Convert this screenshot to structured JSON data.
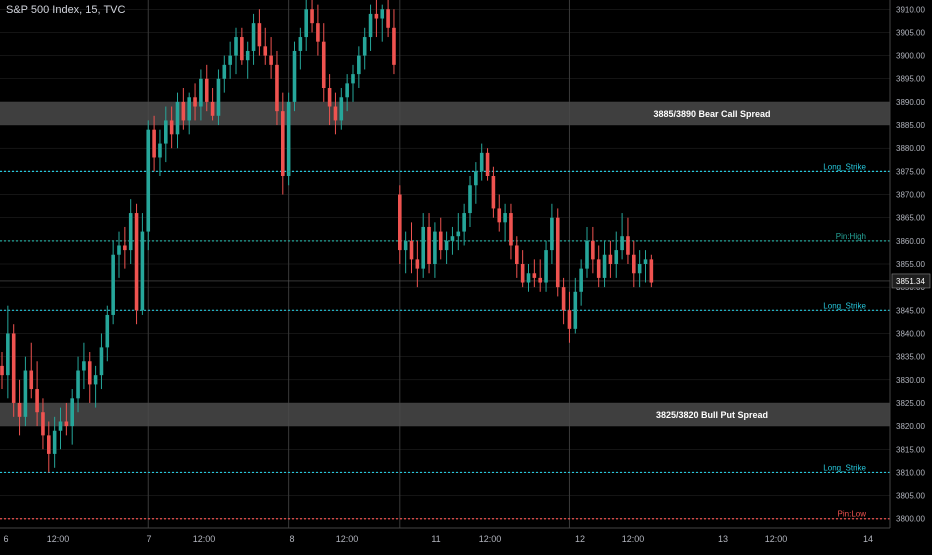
{
  "header": {
    "symbol_line": "S&P 500 Index, 15, TVC"
  },
  "colors": {
    "background": "#000000",
    "up": "#26a69a",
    "down": "#ef5350",
    "zone_fill": "#4a4a4a",
    "cyan_line": "#26c6da",
    "green_line": "#26a69a",
    "red_line": "#ef5350",
    "axis_text": "#b2b5be",
    "grid": "#2a2a2a"
  },
  "chart_data": {
    "type": "candlestick",
    "title": "S&P 500 Index, 15, TVC",
    "ylim": [
      3798,
      3912
    ],
    "y_ticks": [
      3800,
      3805,
      3810,
      3815,
      3820,
      3825,
      3830,
      3835,
      3840,
      3845,
      3850,
      3855,
      3860,
      3865,
      3870,
      3875,
      3880,
      3885,
      3890,
      3895,
      3900,
      3905,
      3910
    ],
    "x_ticks": [
      "6",
      "12:00",
      "7",
      "12:00",
      "8",
      "12:00",
      "11",
      "12:00",
      "12",
      "12:00",
      "13",
      "12:00",
      "14"
    ],
    "day_separators": [
      "7",
      "8",
      "11",
      "12"
    ],
    "last_price": {
      "value": 3851.34,
      "label": "3851.34"
    },
    "zones": [
      {
        "label": "3885/3890 Bear Call Spread",
        "from": 3885,
        "to": 3890
      },
      {
        "label": "3825/3820 Bull Put Spread",
        "from": 3820,
        "to": 3825
      }
    ],
    "lines": [
      {
        "label": "Long_Strike",
        "value": 3875,
        "color": "cyan"
      },
      {
        "label": "Pin:High",
        "value": 3860,
        "color": "green"
      },
      {
        "label": "Long_Strike",
        "value": 3845,
        "color": "cyan"
      },
      {
        "label": "Long_Strike",
        "value": 3810,
        "color": "cyan"
      },
      {
        "label": "Pin:Low",
        "value": 3800,
        "color": "red"
      }
    ],
    "candles": [
      [
        3833,
        3836,
        3828,
        3831
      ],
      [
        3831,
        3846,
        3826,
        3840
      ],
      [
        3840,
        3842,
        3822,
        3825
      ],
      [
        3825,
        3830,
        3818,
        3822
      ],
      [
        3822,
        3835,
        3820,
        3832
      ],
      [
        3832,
        3838,
        3826,
        3828
      ],
      [
        3828,
        3834,
        3820,
        3823
      ],
      [
        3823,
        3826,
        3815,
        3818
      ],
      [
        3818,
        3821,
        3810,
        3814
      ],
      [
        3814,
        3822,
        3811,
        3819
      ],
      [
        3819,
        3824,
        3815,
        3821
      ],
      [
        3821,
        3825,
        3818,
        3820
      ],
      [
        3820,
        3828,
        3816,
        3826
      ],
      [
        3826,
        3835,
        3823,
        3832
      ],
      [
        3832,
        3838,
        3828,
        3834
      ],
      [
        3834,
        3836,
        3825,
        3829
      ],
      [
        3829,
        3833,
        3824,
        3831
      ],
      [
        3831,
        3840,
        3828,
        3837
      ],
      [
        3837,
        3846,
        3834,
        3844
      ],
      [
        3844,
        3860,
        3842,
        3857
      ],
      [
        3857,
        3862,
        3852,
        3859
      ],
      [
        3859,
        3863,
        3854,
        3858
      ],
      [
        3858,
        3869,
        3855,
        3866
      ],
      [
        3866,
        3868,
        3842,
        3845
      ],
      [
        3845,
        3866,
        3844,
        3862
      ],
      [
        3862,
        3886,
        3858,
        3884
      ],
      [
        3884,
        3887,
        3875,
        3878
      ],
      [
        3878,
        3884,
        3874,
        3881
      ],
      [
        3881,
        3889,
        3877,
        3886
      ],
      [
        3886,
        3889,
        3880,
        3883
      ],
      [
        3883,
        3892,
        3880,
        3890
      ],
      [
        3890,
        3893,
        3884,
        3886
      ],
      [
        3886,
        3892,
        3883,
        3891
      ],
      [
        3891,
        3894,
        3886,
        3889
      ],
      [
        3889,
        3897,
        3886,
        3895
      ],
      [
        3895,
        3898,
        3888,
        3890
      ],
      [
        3890,
        3893,
        3886,
        3887
      ],
      [
        3887,
        3897,
        3885,
        3895
      ],
      [
        3895,
        3900,
        3892,
        3898
      ],
      [
        3898,
        3903,
        3895,
        3900
      ],
      [
        3900,
        3906,
        3896,
        3904
      ],
      [
        3904,
        3906,
        3898,
        3899
      ],
      [
        3899,
        3903,
        3895,
        3901
      ],
      [
        3901,
        3909,
        3898,
        3907
      ],
      [
        3907,
        3910,
        3900,
        3902
      ],
      [
        3902,
        3906,
        3898,
        3900
      ],
      [
        3900,
        3904,
        3895,
        3898
      ],
      [
        3898,
        3901,
        3885,
        3888
      ],
      [
        3888,
        3892,
        3870,
        3874
      ],
      [
        3874,
        3892,
        3872,
        3890
      ],
      [
        3890,
        3903,
        3888,
        3901
      ],
      [
        3901,
        3906,
        3897,
        3904
      ],
      [
        3904,
        3912,
        3901,
        3910
      ],
      [
        3910,
        3912,
        3905,
        3907
      ],
      [
        3907,
        3911,
        3900,
        3903
      ],
      [
        3903,
        3907,
        3890,
        3893
      ],
      [
        3893,
        3896,
        3885,
        3889
      ],
      [
        3889,
        3892,
        3883,
        3886
      ],
      [
        3886,
        3893,
        3884,
        3891
      ],
      [
        3891,
        3896,
        3888,
        3894
      ],
      [
        3894,
        3898,
        3890,
        3896
      ],
      [
        3896,
        3902,
        3893,
        3900
      ],
      [
        3900,
        3906,
        3897,
        3904
      ],
      [
        3904,
        3911,
        3901,
        3909
      ],
      [
        3909,
        3912,
        3904,
        3908
      ],
      [
        3908,
        3911,
        3903,
        3910
      ],
      [
        3910,
        3912,
        3904,
        3906
      ],
      [
        3906,
        3910,
        3896,
        3898
      ],
      [
        3870,
        3872,
        3855,
        3858
      ],
      [
        3858,
        3862,
        3853,
        3860
      ],
      [
        3860,
        3864,
        3853,
        3856
      ],
      [
        3856,
        3860,
        3850,
        3854
      ],
      [
        3854,
        3866,
        3852,
        3863
      ],
      [
        3863,
        3866,
        3853,
        3855
      ],
      [
        3855,
        3864,
        3852,
        3862
      ],
      [
        3862,
        3865,
        3856,
        3858
      ],
      [
        3858,
        3862,
        3855,
        3860
      ],
      [
        3860,
        3863,
        3857,
        3861
      ],
      [
        3861,
        3866,
        3858,
        3862
      ],
      [
        3862,
        3868,
        3859,
        3866
      ],
      [
        3866,
        3874,
        3863,
        3872
      ],
      [
        3872,
        3877,
        3868,
        3875
      ],
      [
        3875,
        3881,
        3873,
        3879
      ],
      [
        3879,
        3880,
        3873,
        3874
      ],
      [
        3874,
        3876,
        3865,
        3867
      ],
      [
        3867,
        3870,
        3862,
        3864
      ],
      [
        3864,
        3868,
        3860,
        3866
      ],
      [
        3866,
        3868,
        3856,
        3859
      ],
      [
        3859,
        3861,
        3852,
        3855
      ],
      [
        3855,
        3858,
        3850,
        3851
      ],
      [
        3851,
        3855,
        3849,
        3853
      ],
      [
        3853,
        3856,
        3850,
        3852
      ],
      [
        3852,
        3856,
        3849,
        3851
      ],
      [
        3851,
        3860,
        3849,
        3858
      ],
      [
        3858,
        3868,
        3855,
        3865
      ],
      [
        3865,
        3867,
        3848,
        3850
      ],
      [
        3850,
        3852,
        3842,
        3845
      ],
      [
        3845,
        3849,
        3838,
        3841
      ],
      [
        3841,
        3852,
        3840,
        3849
      ],
      [
        3849,
        3856,
        3846,
        3854
      ],
      [
        3854,
        3863,
        3852,
        3860
      ],
      [
        3860,
        3863,
        3853,
        3856
      ],
      [
        3856,
        3859,
        3850,
        3852
      ],
      [
        3852,
        3860,
        3850,
        3857
      ],
      [
        3857,
        3860,
        3852,
        3855
      ],
      [
        3855,
        3862,
        3852,
        3858
      ],
      [
        3858,
        3866,
        3856,
        3861
      ],
      [
        3861,
        3865,
        3855,
        3857
      ],
      [
        3857,
        3860,
        3850,
        3853
      ],
      [
        3853,
        3858,
        3850,
        3855
      ],
      [
        3855,
        3858,
        3851,
        3856
      ],
      [
        3856,
        3857,
        3850,
        3851
      ]
    ]
  }
}
